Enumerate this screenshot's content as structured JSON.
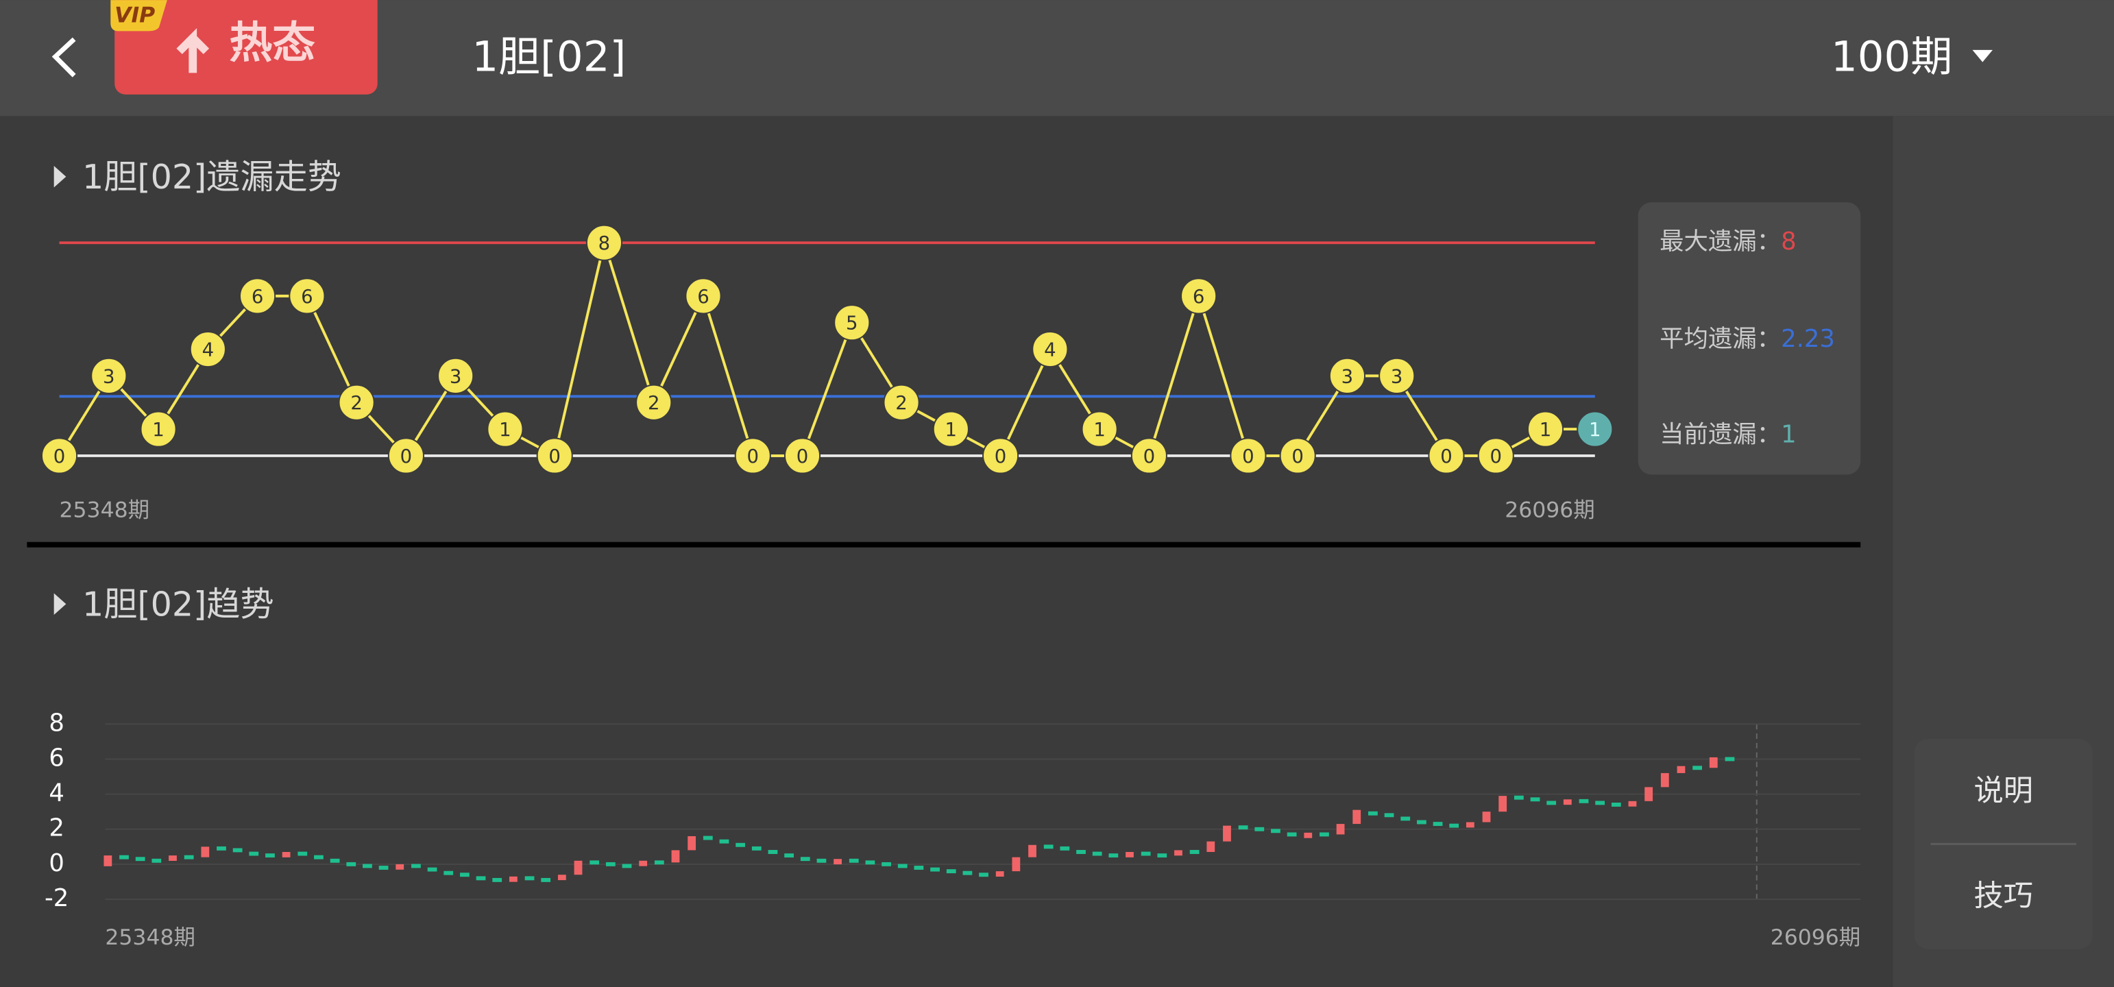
{
  "header": {
    "vip_badge": "VIP",
    "hot_button": "热态",
    "title": "1胆[02]",
    "period_selector": "100期"
  },
  "omission_chart": {
    "type": "line",
    "title": "1胆[02]遗漏走势",
    "values": [
      0,
      3,
      1,
      4,
      6,
      6,
      2,
      0,
      3,
      1,
      0,
      8,
      2,
      6,
      0,
      0,
      5,
      2,
      1,
      0,
      4,
      1,
      0,
      6,
      0,
      0,
      3,
      3,
      0,
      0,
      1,
      1
    ],
    "start_label": "25348期",
    "end_label": "26096期",
    "max_label": "最大遗漏：",
    "max": 8,
    "avg_label": "平均遗漏：",
    "avg": 2.23,
    "current_label": "当前遗漏：",
    "current": 1,
    "point_color": "#f5e65a",
    "current_color": "#5fb0ad",
    "max_color": "#e0474c",
    "avg_color": "#3a6fd8",
    "base_color": "#e8e8e8"
  },
  "trend_chart": {
    "type": "candlestick",
    "title": "1胆[02]趋势",
    "values": [
      0.5,
      0.4,
      0.3,
      0.2,
      0.5,
      0.4,
      1.0,
      0.9,
      0.8,
      0.6,
      0.5,
      0.7,
      0.6,
      0.4,
      0.2,
      0.0,
      -0.1,
      -0.2,
      0.0,
      -0.1,
      -0.3,
      -0.5,
      -0.6,
      -0.8,
      -0.9,
      -0.7,
      -0.8,
      -0.9,
      -0.6,
      0.2,
      0.1,
      0.0,
      -0.1,
      0.2,
      0.1,
      0.8,
      1.6,
      1.5,
      1.3,
      1.1,
      0.9,
      0.7,
      0.5,
      0.3,
      0.2,
      0.3,
      0.2,
      0.1,
      0.0,
      -0.1,
      -0.2,
      -0.3,
      -0.4,
      -0.5,
      -0.6,
      -0.4,
      0.4,
      1.1,
      1.0,
      0.9,
      0.7,
      0.6,
      0.5,
      0.7,
      0.6,
      0.5,
      0.8,
      0.7,
      1.3,
      2.2,
      2.1,
      2.0,
      1.9,
      1.7,
      1.8,
      1.7,
      2.3,
      3.1,
      2.9,
      2.8,
      2.6,
      2.4,
      2.3,
      2.2,
      2.4,
      3.0,
      3.9,
      3.8,
      3.7,
      3.5,
      3.7,
      3.6,
      3.5,
      3.4,
      3.6,
      4.4,
      5.2,
      5.6,
      5.5,
      6.1,
      6.0
    ],
    "ylim": [
      -2,
      8
    ],
    "yticks": [
      -2,
      0,
      2,
      4,
      6,
      8
    ],
    "start_label": "25348期",
    "end_label": "26096期",
    "up_color": "#f06467",
    "down_color": "#1fbf8f",
    "grid": true
  },
  "side_menu": {
    "items": [
      "说明",
      "技巧"
    ]
  }
}
